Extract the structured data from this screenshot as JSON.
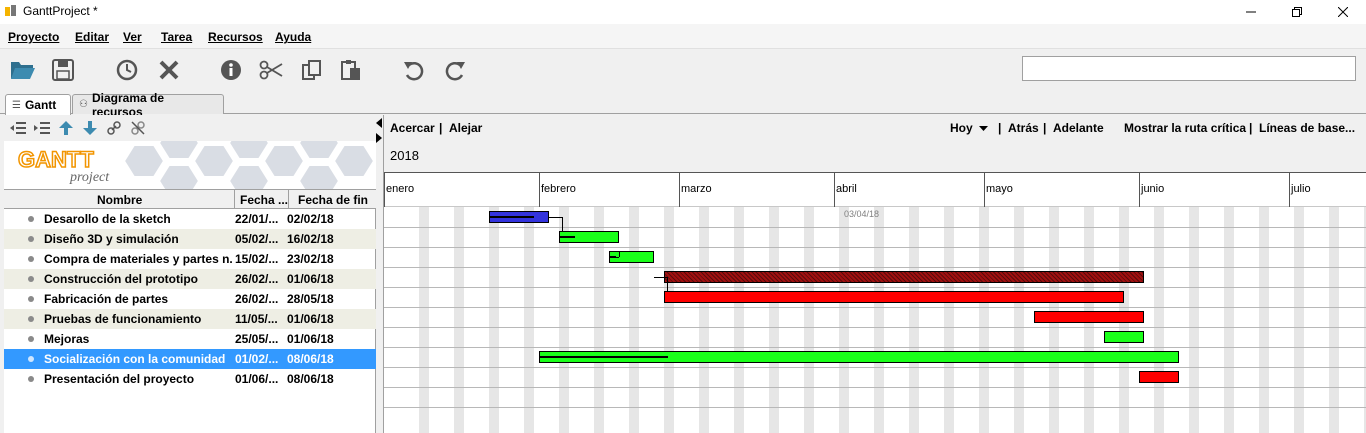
{
  "window": {
    "title": "GanttProject *"
  },
  "menu": [
    "Proyecto",
    "Editar",
    "Ver",
    "Tarea",
    "Recursos",
    "Ayuda"
  ],
  "toolbar_icons": [
    "open-folder-icon",
    "save-icon",
    "history-icon",
    "delete-icon",
    "info-icon",
    "cut-icon",
    "copy-icon",
    "paste-icon",
    "undo-icon",
    "redo-icon"
  ],
  "search": {
    "value": ""
  },
  "tabs": [
    {
      "label": "Gantt",
      "active": true
    },
    {
      "label": "Diagrama de recursos",
      "active": false
    }
  ],
  "logo": {
    "main": "GANTT",
    "sub": "project"
  },
  "columns": {
    "name": "Nombre",
    "start": "Fecha ...",
    "end": "Fecha de fin"
  },
  "tasks": [
    {
      "name": "Desarollo de la sketch",
      "start": "22/01/...",
      "end": "02/02/18"
    },
    {
      "name": "Diseño 3D y simulación",
      "start": "05/02/...",
      "end": "16/02/18"
    },
    {
      "name": "Compra de materiales y partes n...",
      "start": "15/02/...",
      "end": "23/02/18"
    },
    {
      "name": "Construcción del prototipo",
      "start": "26/02/...",
      "end": "01/06/18"
    },
    {
      "name": "Fabricación de partes",
      "start": "26/02/...",
      "end": "28/05/18"
    },
    {
      "name": "Pruebas de funcionamiento",
      "start": "11/05/...",
      "end": "01/06/18"
    },
    {
      "name": "Mejoras",
      "start": "25/05/...",
      "end": "01/06/18"
    },
    {
      "name": "Socialización con la comunidad",
      "start": "01/02/...",
      "end": "08/06/18",
      "selected": true
    },
    {
      "name": "Presentación del proyecto",
      "start": "01/06/...",
      "end": "08/06/18"
    }
  ],
  "chart_toolbar": {
    "zoom_in": "Acercar",
    "zoom_out": "Alejar",
    "today": "Hoy",
    "back": "Atrás",
    "forward": "Adelante",
    "critical_path": "Mostrar la ruta crítica",
    "baselines": "Líneas de base..."
  },
  "timeline": {
    "year": "2018",
    "months": [
      "enero",
      "febrero",
      "marzo",
      "abril",
      "mayo",
      "junio",
      "julio"
    ],
    "today_marker": "03/04/18"
  },
  "bars": [
    {
      "color": "#3333dd",
      "progress": 0.75
    },
    {
      "color": "#1aff1a",
      "progress": 0.25
    },
    {
      "color": "#1aff1a",
      "progress": 0.15
    },
    {
      "color": "#a01010",
      "progress": 0,
      "hatched": true
    },
    {
      "color": "#ff0000",
      "progress": 0
    },
    {
      "color": "#ff0000",
      "progress": 0
    },
    {
      "color": "#1aff1a",
      "progress": 0
    },
    {
      "color": "#1aff1a",
      "progress": 0.2
    },
    {
      "color": "#ff0000",
      "progress": 0
    }
  ]
}
